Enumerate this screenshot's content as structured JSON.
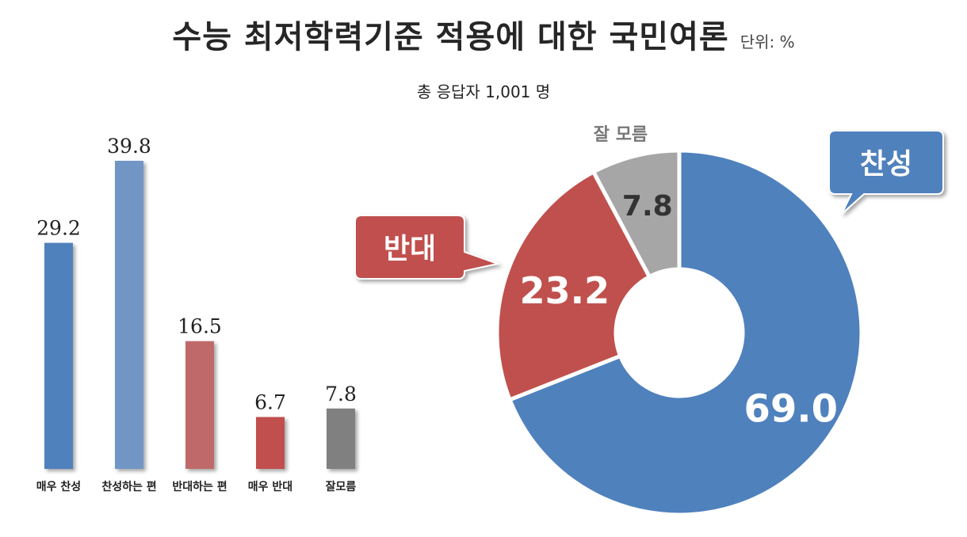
{
  "header": {
    "title": "수능 최저학력기준 적용에 대한 국민여론",
    "unit": "단위: %",
    "subtitle": "총 응답자 1,001 명"
  },
  "chart_data": [
    {
      "type": "bar",
      "categories": [
        "매우 찬성",
        "찬성하는 편",
        "반대하는 편",
        "매우 반대",
        "잘모름"
      ],
      "values": [
        29.2,
        39.8,
        16.5,
        6.7,
        7.8
      ],
      "colors": [
        "#4F81BD",
        "#7196C6",
        "#C0696A",
        "#C0504D",
        "#808080"
      ],
      "ylim": [
        0,
        39.8
      ]
    },
    {
      "type": "pie",
      "donut": true,
      "slices": [
        {
          "label": "찬성",
          "value": 69.0,
          "color": "#4F81BD",
          "value_label": "69.0"
        },
        {
          "label": "반대",
          "value": 23.2,
          "color": "#C0504D",
          "value_label": "23.2"
        },
        {
          "label": "잘 모름",
          "value": 7.8,
          "color": "#A6A6A6",
          "value_label": "7.8"
        }
      ]
    }
  ]
}
